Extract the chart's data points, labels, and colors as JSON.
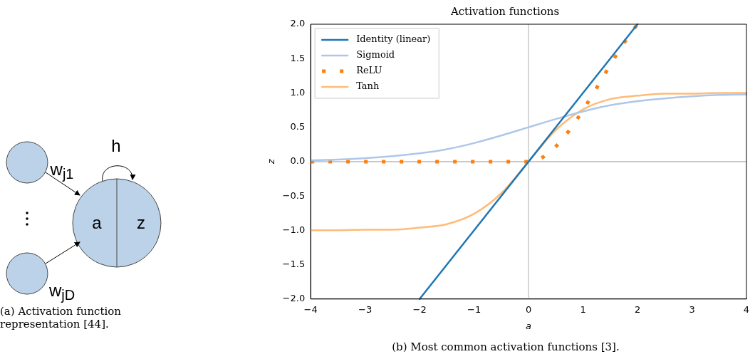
{
  "chart_data": [
    {
      "type": "other",
      "annotations": [
        "h",
        "w$_{j1}$",
        "a",
        "z",
        "w$_{jD}$",
        "(a) Activation function representation [44]."
      ]
    },
    {
      "type": "line",
      "title": "Activation functions",
      "xlabel": "a",
      "ylabel": "z",
      "series": [
        {
          "name": "Identity (linear)",
          "color": "#1f77b4",
          "x": [
            -2,
            2
          ],
          "values": [
            -2,
            2
          ]
        },
        {
          "name": "Sigmoid",
          "color": "#aec7e8",
          "x": [
            -4,
            -3.5,
            -3,
            -2.5,
            -2,
            -1.5,
            -1,
            -0.5,
            0,
            0.5,
            1,
            1.5,
            2,
            2.5,
            3,
            3.5,
            4
          ],
          "values": [
            0.02,
            0.03,
            0.05,
            0.08,
            0.12,
            0.18,
            0.27,
            0.38,
            0.5,
            0.62,
            0.73,
            0.82,
            0.88,
            0.92,
            0.95,
            0.97,
            0.98
          ]
        },
        {
          "name": "ReLU",
          "color": "#ff7f0e",
          "line_style": "dotted",
          "x": [
            -4,
            0,
            2
          ],
          "values": [
            0,
            0,
            2
          ]
        },
        {
          "name": "Tanh",
          "color": "#ffbb78",
          "x": [
            -4,
            -3.5,
            -3,
            -2.5,
            -2,
            -1.5,
            -1,
            -0.5,
            0,
            0.5,
            1,
            1.5,
            2,
            2.5,
            3,
            3.5,
            4
          ],
          "values": [
            -1,
            -1,
            -0.99,
            -0.99,
            -0.96,
            -0.91,
            -0.76,
            -0.46,
            0,
            0.46,
            0.76,
            0.91,
            0.96,
            0.99,
            0.99,
            1,
            1
          ]
        }
      ],
      "xlim": [
        -4,
        4
      ],
      "xticks": [
        {
          "value": -4,
          "label": "−4"
        },
        {
          "value": -3,
          "label": "−3"
        },
        {
          "value": -2,
          "label": "−2"
        },
        {
          "value": -1,
          "label": "−1"
        },
        0,
        1,
        2,
        3,
        4
      ],
      "ylim": [
        -2,
        2
      ],
      "yticks": [
        {
          "value": -2,
          "label": "−2.0"
        },
        {
          "value": -1.5,
          "label": "−1.5"
        },
        {
          "value": -1,
          "label": "−1.0"
        },
        {
          "value": -0.5,
          "label": "−0.5"
        },
        {
          "value": 0,
          "label": "0.0"
        },
        {
          "value": 0.5,
          "label": "0.5"
        },
        {
          "value": 1,
          "label": "1.0"
        },
        {
          "value": 1.5,
          "label": "1.5"
        },
        {
          "value": 2,
          "label": "2.0"
        }
      ],
      "ref_lines": [
        {
          "axis": "x",
          "value": 0,
          "color": "#c8c8c8"
        },
        {
          "axis": "y",
          "value": 0,
          "color": "#b8b8b8"
        }
      ],
      "legend": "top left",
      "annotations": [
        "(b) Most common activation functions [3]."
      ]
    }
  ]
}
